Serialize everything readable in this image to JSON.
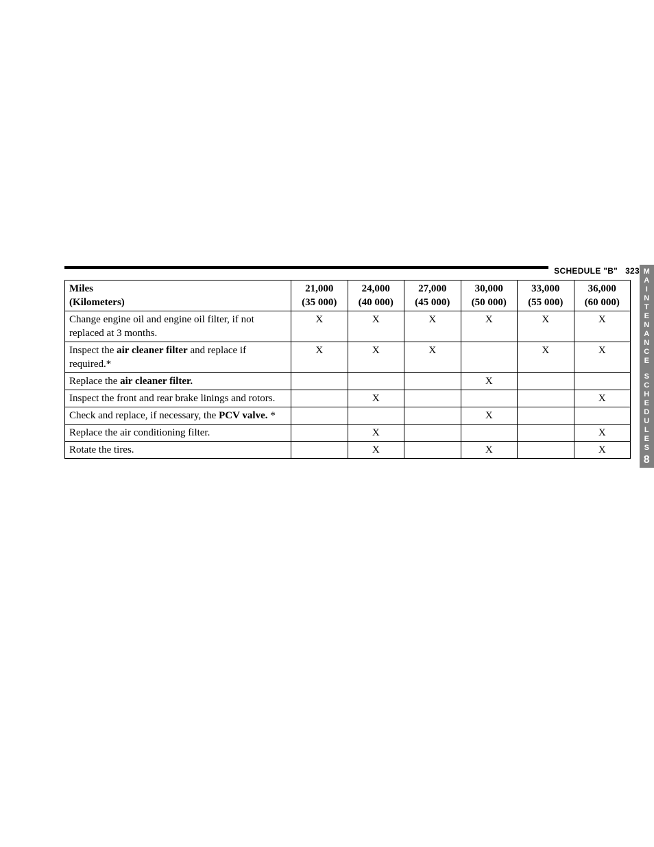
{
  "header": {
    "section_label": "SCHEDULE \"B\"",
    "page_number": "323"
  },
  "side_tab": {
    "line1": "MAINTENANCE",
    "line2": "SCHEDULES",
    "chapter": "8",
    "bg_color": "#808080",
    "fg_color": "#ffffff"
  },
  "table": {
    "header": {
      "desc_label_line1": "Miles",
      "desc_label_line2": "(Kilometers)",
      "columns": [
        {
          "miles": "21,000",
          "km": "(35 000)"
        },
        {
          "miles": "24,000",
          "km": "(40 000)"
        },
        {
          "miles": "27,000",
          "km": "(45 000)"
        },
        {
          "miles": "30,000",
          "km": "(50 000)"
        },
        {
          "miles": "33,000",
          "km": "(55 000)"
        },
        {
          "miles": "36,000",
          "km": "(60 000)"
        }
      ]
    },
    "rows": [
      {
        "desc_parts": [
          {
            "text": "Change engine oil and engine oil filter, if not replaced at 3 months.",
            "bold": false
          }
        ],
        "marks": [
          "X",
          "X",
          "X",
          "X",
          "X",
          "X"
        ]
      },
      {
        "desc_parts": [
          {
            "text": "Inspect the ",
            "bold": false
          },
          {
            "text": "air cleaner filter",
            "bold": true
          },
          {
            "text": " and replace if required.*",
            "bold": false
          }
        ],
        "marks": [
          "X",
          "X",
          "X",
          "",
          "X",
          "X"
        ]
      },
      {
        "desc_parts": [
          {
            "text": "Replace the ",
            "bold": false
          },
          {
            "text": "air cleaner filter.",
            "bold": true
          }
        ],
        "marks": [
          "",
          "",
          "",
          "X",
          "",
          ""
        ]
      },
      {
        "desc_parts": [
          {
            "text": "Inspect the front and rear brake linings and rotors.",
            "bold": false
          }
        ],
        "marks": [
          "",
          "X",
          "",
          "",
          "",
          "X"
        ]
      },
      {
        "desc_parts": [
          {
            "text": "Check and replace, if necessary, the ",
            "bold": false
          },
          {
            "text": "PCV valve.",
            "bold": true
          },
          {
            "text": " *",
            "bold": false
          }
        ],
        "marks": [
          "",
          "",
          "",
          "X",
          "",
          ""
        ]
      },
      {
        "desc_parts": [
          {
            "text": "Replace the air conditioning filter.",
            "bold": false
          }
        ],
        "marks": [
          "",
          "X",
          "",
          "",
          "",
          "X"
        ]
      },
      {
        "desc_parts": [
          {
            "text": "Rotate the tires.",
            "bold": false
          }
        ],
        "marks": [
          "",
          "X",
          "",
          "X",
          "",
          "X"
        ]
      }
    ]
  }
}
